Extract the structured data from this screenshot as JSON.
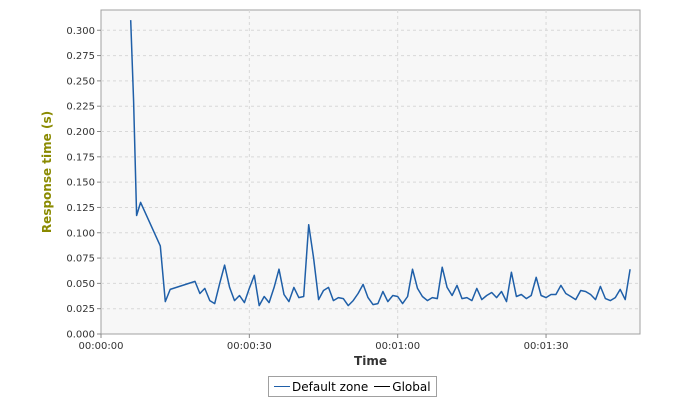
{
  "chart_data": {
    "type": "line",
    "title": "",
    "xlabel": "Time",
    "ylabel": "Response time (s)",
    "x_unit": "seconds",
    "xlim": [
      0,
      109
    ],
    "ylim": [
      0,
      0.32
    ],
    "y_ticks": [
      0.0,
      0.025,
      0.05,
      0.075,
      0.1,
      0.125,
      0.15,
      0.175,
      0.2,
      0.225,
      0.25,
      0.275,
      0.3
    ],
    "y_tick_labels": [
      "0.000",
      "0.025",
      "0.050",
      "0.075",
      "0.100",
      "0.125",
      "0.150",
      "0.175",
      "0.200",
      "0.225",
      "0.250",
      "0.275",
      "0.300"
    ],
    "x_ticks": [
      0,
      30,
      60,
      90
    ],
    "x_tick_labels": [
      "00:00:00",
      "00:00:30",
      "00:01:00",
      "00:01:30"
    ],
    "grid": true,
    "legend_position": "bottom",
    "series": [
      {
        "name": "Default zone",
        "color": "#1f5fa8",
        "x": [
          6,
          6.6,
          7.2,
          8,
          12,
          13,
          14,
          19,
          20,
          21,
          22,
          23,
          24,
          25,
          26,
          27,
          28,
          29,
          30,
          31,
          32,
          33,
          34,
          35,
          36,
          37,
          38,
          39,
          40,
          41,
          42,
          43,
          44,
          45,
          46,
          47,
          48,
          49,
          50,
          51,
          52,
          53,
          54,
          55,
          56,
          57,
          58,
          59,
          60,
          61,
          62,
          63,
          64,
          65,
          66,
          67,
          68,
          69,
          70,
          71,
          72,
          73,
          74,
          75,
          76,
          77,
          78,
          79,
          80,
          81,
          82,
          83,
          84,
          85,
          86,
          87,
          88,
          89,
          90,
          91,
          92,
          93,
          94,
          95,
          96,
          97,
          98,
          99,
          100,
          101,
          102,
          103,
          104,
          105,
          106,
          107
        ],
        "y": [
          0.31,
          0.23,
          0.117,
          0.13,
          0.087,
          0.032,
          0.044,
          0.052,
          0.04,
          0.045,
          0.033,
          0.03,
          0.05,
          0.068,
          0.046,
          0.033,
          0.038,
          0.031,
          0.045,
          0.058,
          0.028,
          0.037,
          0.031,
          0.046,
          0.064,
          0.039,
          0.032,
          0.046,
          0.036,
          0.037,
          0.108,
          0.075,
          0.034,
          0.043,
          0.046,
          0.033,
          0.036,
          0.035,
          0.028,
          0.033,
          0.04,
          0.049,
          0.036,
          0.029,
          0.03,
          0.042,
          0.032,
          0.038,
          0.037,
          0.03,
          0.037,
          0.064,
          0.045,
          0.037,
          0.033,
          0.036,
          0.035,
          0.066,
          0.046,
          0.038,
          0.048,
          0.035,
          0.036,
          0.033,
          0.045,
          0.034,
          0.038,
          0.041,
          0.036,
          0.042,
          0.032,
          0.061,
          0.037,
          0.039,
          0.035,
          0.038,
          0.056,
          0.038,
          0.036,
          0.039,
          0.039,
          0.048,
          0.04,
          0.037,
          0.034,
          0.043,
          0.042,
          0.039,
          0.034,
          0.047,
          0.035,
          0.033,
          0.036,
          0.044,
          0.034,
          0.064
        ]
      },
      {
        "name": "Global",
        "color": "#000000",
        "x": [],
        "y": []
      }
    ]
  }
}
